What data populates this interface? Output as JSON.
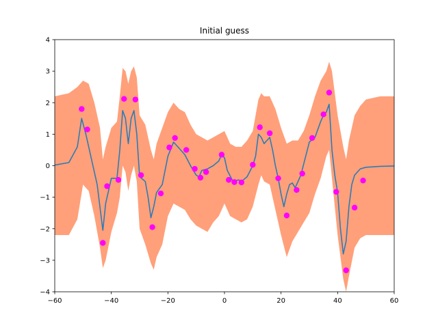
{
  "chart_data": {
    "type": "line",
    "title": "Initial guess",
    "xlabel": "",
    "ylabel": "",
    "xlim": [
      -60,
      60
    ],
    "ylim": [
      -4,
      4
    ],
    "xticks": [
      -60,
      -40,
      -20,
      0,
      20,
      40,
      60
    ],
    "yticks": [
      -4,
      -3,
      -2,
      -1,
      0,
      1,
      2,
      3,
      4
    ],
    "grid": false,
    "colors": {
      "mean": "#2c7bb6",
      "band": "#ffa07a",
      "points": "#ff00ff"
    },
    "mean": {
      "x": [
        -60,
        -55,
        -52,
        -50.5,
        -49,
        -47,
        -45,
        -43,
        -42,
        -40,
        -38,
        -37,
        -36,
        -35,
        -34,
        -33,
        -32,
        -31,
        -30,
        -28,
        -27,
        -26,
        -25,
        -24,
        -22,
        -20,
        -18,
        -16,
        -14,
        -12,
        -10,
        -9,
        -8,
        -6,
        -4,
        -2,
        -1,
        0,
        1,
        3,
        5,
        6,
        8,
        10,
        11,
        12,
        13,
        14,
        15,
        16,
        17,
        18,
        19,
        20,
        21,
        22,
        23,
        24,
        25,
        26,
        27,
        28,
        30,
        32,
        34,
        35,
        36,
        37,
        38,
        39,
        40,
        41,
        42,
        43,
        44,
        45,
        46,
        48,
        50,
        55,
        60
      ],
      "y": [
        0.02,
        0.1,
        0.6,
        1.5,
        1.0,
        0.2,
        -0.6,
        -2.05,
        -1.2,
        -0.4,
        -0.4,
        0.5,
        1.75,
        1.5,
        0.7,
        1.5,
        1.75,
        1.0,
        -0.35,
        -0.5,
        -1.0,
        -1.65,
        -1.3,
        -0.85,
        -0.6,
        0.3,
        0.75,
        0.55,
        0.35,
        0.0,
        -0.3,
        -0.35,
        -0.15,
        -0.1,
        0.0,
        0.15,
        0.35,
        0.25,
        -0.15,
        -0.5,
        -0.45,
        -0.5,
        -0.35,
        0.0,
        0.3,
        1.0,
        0.9,
        0.7,
        0.8,
        0.9,
        0.5,
        0.0,
        -0.4,
        -0.9,
        -1.3,
        -0.9,
        -0.6,
        -0.55,
        -0.7,
        -0.5,
        -0.3,
        0.05,
        0.75,
        0.9,
        1.4,
        1.6,
        1.7,
        1.95,
        0.5,
        -0.3,
        -0.85,
        -2.0,
        -2.8,
        -2.4,
        -1.3,
        -0.6,
        -0.3,
        -0.1,
        -0.05,
        -0.02,
        -0.01
      ]
    },
    "band": {
      "x": [
        -60,
        -55,
        -52,
        -50,
        -48,
        -46,
        -44,
        -43,
        -42,
        -40,
        -38,
        -37,
        -36,
        -35,
        -34,
        -33,
        -32,
        -31,
        -30,
        -28,
        -26,
        -25,
        -24,
        -22,
        -20,
        -18,
        -16,
        -14,
        -12,
        -10,
        -8,
        -6,
        -4,
        -2,
        0,
        2,
        4,
        6,
        8,
        10,
        12,
        13,
        14,
        16,
        18,
        20,
        22,
        24,
        26,
        28,
        30,
        32,
        34,
        36,
        37,
        38,
        40,
        42,
        43,
        44,
        46,
        48,
        50,
        55,
        60
      ],
      "upper": [
        2.2,
        2.3,
        2.5,
        2.7,
        2.6,
        2.0,
        1.2,
        0.2,
        0.6,
        1.2,
        1.4,
        2.2,
        3.1,
        3.0,
        2.6,
        3.0,
        3.15,
        2.8,
        1.6,
        1.3,
        0.5,
        0.2,
        0.7,
        1.2,
        1.7,
        2.0,
        1.8,
        1.7,
        1.3,
        1.0,
        0.9,
        0.8,
        0.9,
        1.0,
        1.1,
        0.7,
        0.6,
        0.6,
        0.8,
        1.1,
        2.1,
        2.3,
        2.2,
        2.2,
        1.8,
        1.2,
        0.7,
        0.8,
        0.8,
        1.1,
        1.6,
        2.2,
        2.7,
        3.0,
        3.3,
        3.0,
        1.6,
        0.6,
        0.2,
        0.8,
        1.6,
        1.9,
        2.1,
        2.2,
        2.2
      ],
      "lower": [
        -2.2,
        -2.2,
        -1.7,
        -0.6,
        -0.8,
        -1.6,
        -2.6,
        -3.25,
        -3.0,
        -2.1,
        -1.5,
        -1.0,
        0.0,
        -0.2,
        -0.8,
        -0.3,
        0.0,
        -0.5,
        -2.0,
        -2.5,
        -3.1,
        -3.3,
        -2.9,
        -2.5,
        -1.6,
        -1.2,
        -1.3,
        -1.4,
        -1.7,
        -1.9,
        -2.0,
        -2.1,
        -1.8,
        -1.6,
        -1.2,
        -1.6,
        -1.7,
        -1.8,
        -1.7,
        -1.3,
        -0.6,
        -0.3,
        -0.5,
        -0.6,
        -1.4,
        -2.2,
        -2.9,
        -2.4,
        -2.1,
        -1.8,
        -1.5,
        -0.9,
        -0.4,
        0.3,
        0.5,
        -0.4,
        -2.2,
        -3.6,
        -4.0,
        -3.5,
        -2.6,
        -2.3,
        -2.2,
        -2.2,
        -2.2
      ]
    },
    "points": {
      "x": [
        -50.5,
        -48.5,
        -43,
        -41.5,
        -37.5,
        -35.5,
        -31.5,
        -29.5,
        -25.5,
        -22.5,
        -19.5,
        -17.5,
        -13.5,
        -10.5,
        -8.5,
        -6.5,
        -1,
        1.5,
        3.5,
        6,
        10,
        12.5,
        16,
        19,
        22,
        25.5,
        27.5,
        31,
        35,
        37,
        39.5,
        43,
        46,
        49
      ],
      "y": [
        1.8,
        1.15,
        -2.45,
        -0.65,
        -0.45,
        2.12,
        2.1,
        -0.3,
        -1.95,
        -0.88,
        0.58,
        0.88,
        0.5,
        -0.1,
        -0.38,
        -0.2,
        0.35,
        -0.45,
        -0.52,
        -0.53,
        0.03,
        1.22,
        1.03,
        -0.4,
        -1.58,
        -0.77,
        -0.25,
        0.88,
        1.63,
        2.32,
        -0.83,
        -3.32,
        -1.33,
        -0.47
      ]
    }
  }
}
